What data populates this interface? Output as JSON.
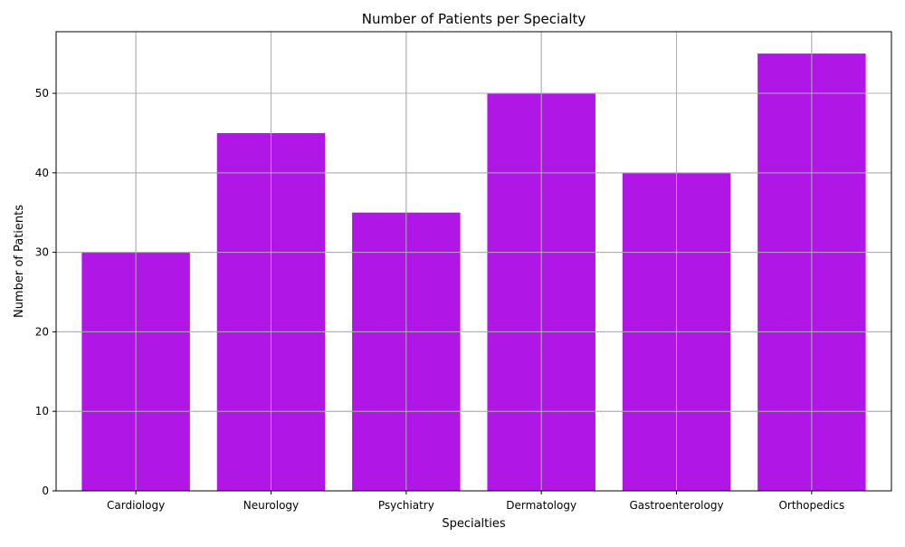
{
  "chart_data": {
    "type": "bar",
    "title": "Number of Patients per Specialty",
    "xlabel": "Specialties",
    "ylabel": "Number of Patients",
    "categories": [
      "Cardiology",
      "Neurology",
      "Psychiatry",
      "Dermatology",
      "Gastroenterology",
      "Orthopedics"
    ],
    "values": [
      30,
      45,
      35,
      50,
      40,
      55
    ],
    "ylim": [
      0,
      57.75
    ],
    "yticks": [
      0,
      10,
      20,
      30,
      40,
      50
    ],
    "grid": true,
    "bar_color": "#b016e6",
    "grid_color": "#b0b0b0"
  }
}
